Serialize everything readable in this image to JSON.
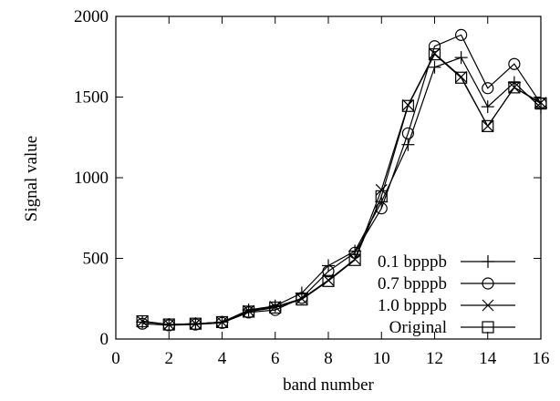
{
  "chart_data": {
    "type": "line",
    "title": "",
    "xlabel": "band number",
    "ylabel": "Signal value",
    "xlim": [
      0,
      16
    ],
    "ylim": [
      0,
      2000
    ],
    "xticks": [
      0,
      2,
      4,
      6,
      8,
      10,
      12,
      14,
      16
    ],
    "yticks": [
      0,
      500,
      1000,
      1500,
      2000
    ],
    "x_tick_labels": [
      "0",
      "2",
      "4",
      "6",
      "8",
      "10",
      "12",
      "14",
      "16"
    ],
    "y_tick_labels": [
      "0",
      "500",
      "1000",
      "1500",
      "2000"
    ],
    "grid": false,
    "legend_position": "bottom-right",
    "x": [
      1,
      2,
      3,
      4,
      5,
      6,
      7,
      8,
      9,
      10,
      11,
      12,
      13,
      14,
      15,
      16
    ],
    "series": [
      {
        "name": "0.1 bpppb",
        "marker": "plus",
        "values": [
          105,
          90,
          95,
          105,
          180,
          205,
          285,
          455,
          545,
          850,
          1205,
          1685,
          1745,
          1440,
          1590,
          1435
        ]
      },
      {
        "name": "0.7 bpppb",
        "marker": "circle",
        "values": [
          95,
          85,
          90,
          100,
          165,
          180,
          255,
          420,
          535,
          810,
          1275,
          1815,
          1885,
          1555,
          1705,
          1460
        ]
      },
      {
        "name": "1.0 bpppb",
        "marker": "cross",
        "values": [
          110,
          90,
          95,
          105,
          175,
          200,
          250,
          365,
          495,
          925,
          1450,
          1770,
          1625,
          1320,
          1560,
          1465
        ]
      },
      {
        "name": "Original",
        "marker": "square",
        "values": [
          110,
          90,
          95,
          105,
          170,
          195,
          245,
          360,
          490,
          885,
          1445,
          1765,
          1620,
          1320,
          1560,
          1460
        ]
      }
    ],
    "colors": {
      "line": "#000000",
      "background": "#ffffff"
    }
  }
}
